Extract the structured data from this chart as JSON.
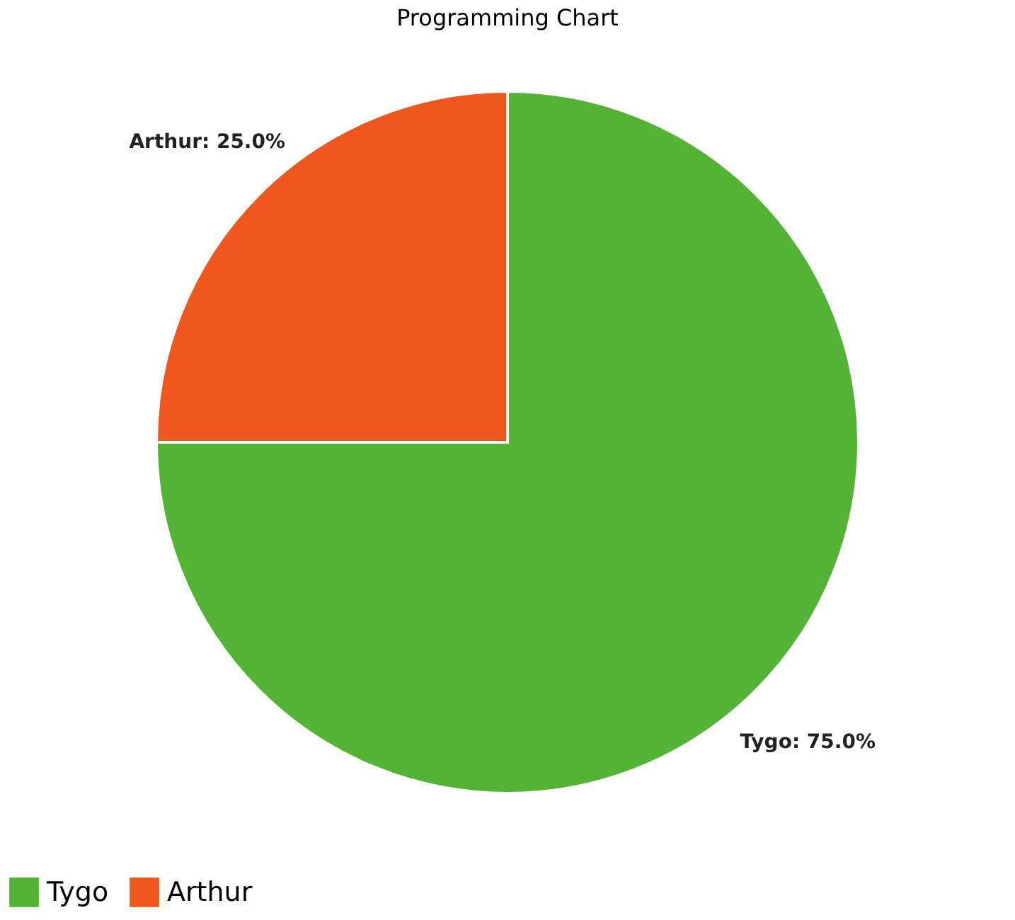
{
  "chart_data": {
    "type": "pie",
    "title": "Programming Chart",
    "categories": [
      "Tygo",
      "Arthur"
    ],
    "values": [
      75,
      25
    ],
    "colors": [
      "#52b334",
      "#ee581f"
    ],
    "value_labels": [
      "Tygo: 75.0%",
      "Arthur: 25.0%"
    ],
    "legend": "bottom"
  }
}
